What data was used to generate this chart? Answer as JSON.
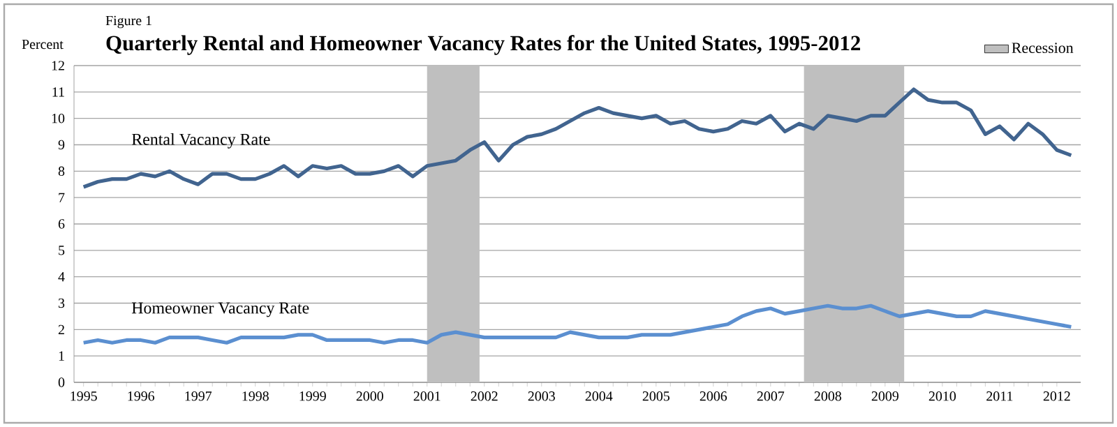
{
  "chart_data": {
    "type": "line",
    "title": "Quarterly Rental and Homeowner Vacancy Rates for the United States, 1995-2012",
    "annotations": [
      "Figure 1"
    ],
    "ylabel": "Percent",
    "x": [
      "1995-01",
      "1995-04",
      "1995-07",
      "1995-10",
      "1996-01",
      "1996-04",
      "1996-07",
      "1996-10",
      "1997-01",
      "1997-04",
      "1997-07",
      "1997-10",
      "1998-01",
      "1998-04",
      "1998-07",
      "1998-10",
      "1999-01",
      "1999-04",
      "1999-07",
      "1999-10",
      "2000-01",
      "2000-04",
      "2000-07",
      "2000-10",
      "2001-01",
      "2001-04",
      "2001-07",
      "2001-10",
      "2002-01",
      "2002-04",
      "2002-07",
      "2002-10",
      "2003-01",
      "2003-04",
      "2003-07",
      "2003-10",
      "2004-01",
      "2004-04",
      "2004-07",
      "2004-10",
      "2005-01",
      "2005-04",
      "2005-07",
      "2005-10",
      "2006-01",
      "2006-04",
      "2006-07",
      "2006-10",
      "2007-01",
      "2007-04",
      "2007-07",
      "2007-10",
      "2008-01",
      "2008-04",
      "2008-07",
      "2008-10",
      "2009-01",
      "2009-04",
      "2009-07",
      "2009-10",
      "2010-01",
      "2010-04",
      "2010-07",
      "2010-10",
      "2011-01",
      "2011-04",
      "2011-07",
      "2011-10",
      "2012-01",
      "2012-04"
    ],
    "series": [
      {
        "name": "Rental Vacancy Rate",
        "color": "#41648f",
        "values": [
          7.4,
          7.6,
          7.7,
          7.7,
          7.9,
          7.8,
          8.0,
          7.7,
          7.5,
          7.9,
          7.9,
          7.7,
          7.7,
          7.9,
          8.2,
          7.8,
          8.2,
          8.1,
          8.2,
          7.9,
          7.9,
          8.0,
          8.2,
          7.8,
          8.2,
          8.3,
          8.4,
          8.8,
          9.1,
          8.4,
          9.0,
          9.3,
          9.4,
          9.6,
          9.9,
          10.2,
          10.4,
          10.2,
          10.1,
          10.0,
          10.1,
          9.8,
          9.9,
          9.6,
          9.5,
          9.6,
          9.9,
          9.8,
          10.1,
          9.5,
          9.8,
          9.6,
          10.1,
          10.0,
          9.9,
          10.1,
          10.1,
          10.6,
          11.1,
          10.7,
          10.6,
          10.6,
          10.3,
          9.4,
          9.7,
          9.2,
          9.8,
          9.4,
          8.8,
          8.6
        ]
      },
      {
        "name": "Homeowner Vacancy Rate",
        "color": "#5b8fd0",
        "values": [
          1.5,
          1.6,
          1.5,
          1.6,
          1.6,
          1.5,
          1.7,
          1.7,
          1.7,
          1.6,
          1.5,
          1.7,
          1.7,
          1.7,
          1.7,
          1.8,
          1.8,
          1.6,
          1.6,
          1.6,
          1.6,
          1.5,
          1.6,
          1.6,
          1.5,
          1.8,
          1.9,
          1.8,
          1.7,
          1.7,
          1.7,
          1.7,
          1.7,
          1.7,
          1.9,
          1.8,
          1.7,
          1.7,
          1.7,
          1.8,
          1.8,
          1.8,
          1.9,
          2.0,
          2.1,
          2.2,
          2.5,
          2.7,
          2.8,
          2.6,
          2.7,
          2.8,
          2.9,
          2.8,
          2.8,
          2.9,
          2.7,
          2.5,
          2.6,
          2.7,
          2.6,
          2.5,
          2.5,
          2.7,
          2.6,
          2.5,
          2.4,
          2.3,
          2.2,
          2.1
        ]
      }
    ],
    "xlim": [
      "1994-11",
      "2012-06"
    ],
    "xticks": [
      "1995",
      "1996",
      "1997",
      "1998",
      "1999",
      "2000",
      "2001",
      "2002",
      "2003",
      "2004",
      "2005",
      "2006",
      "2007",
      "2008",
      "2009",
      "2010",
      "2011",
      "2012"
    ],
    "ylim": [
      0,
      12
    ],
    "yticks": [
      0,
      1,
      2,
      3,
      4,
      5,
      6,
      7,
      8,
      9,
      10,
      11,
      12
    ],
    "grid": "y",
    "legend": "top right",
    "marker": "none",
    "line_style": "solid",
    "bands": [
      {
        "axis": "x",
        "from": "2001-01",
        "to": "2001-12",
        "label": "Recession",
        "color": "#bfbfbf"
      },
      {
        "axis": "x",
        "from": "2007-08",
        "to": "2009-05",
        "color": "#bfbfbf"
      }
    ]
  }
}
